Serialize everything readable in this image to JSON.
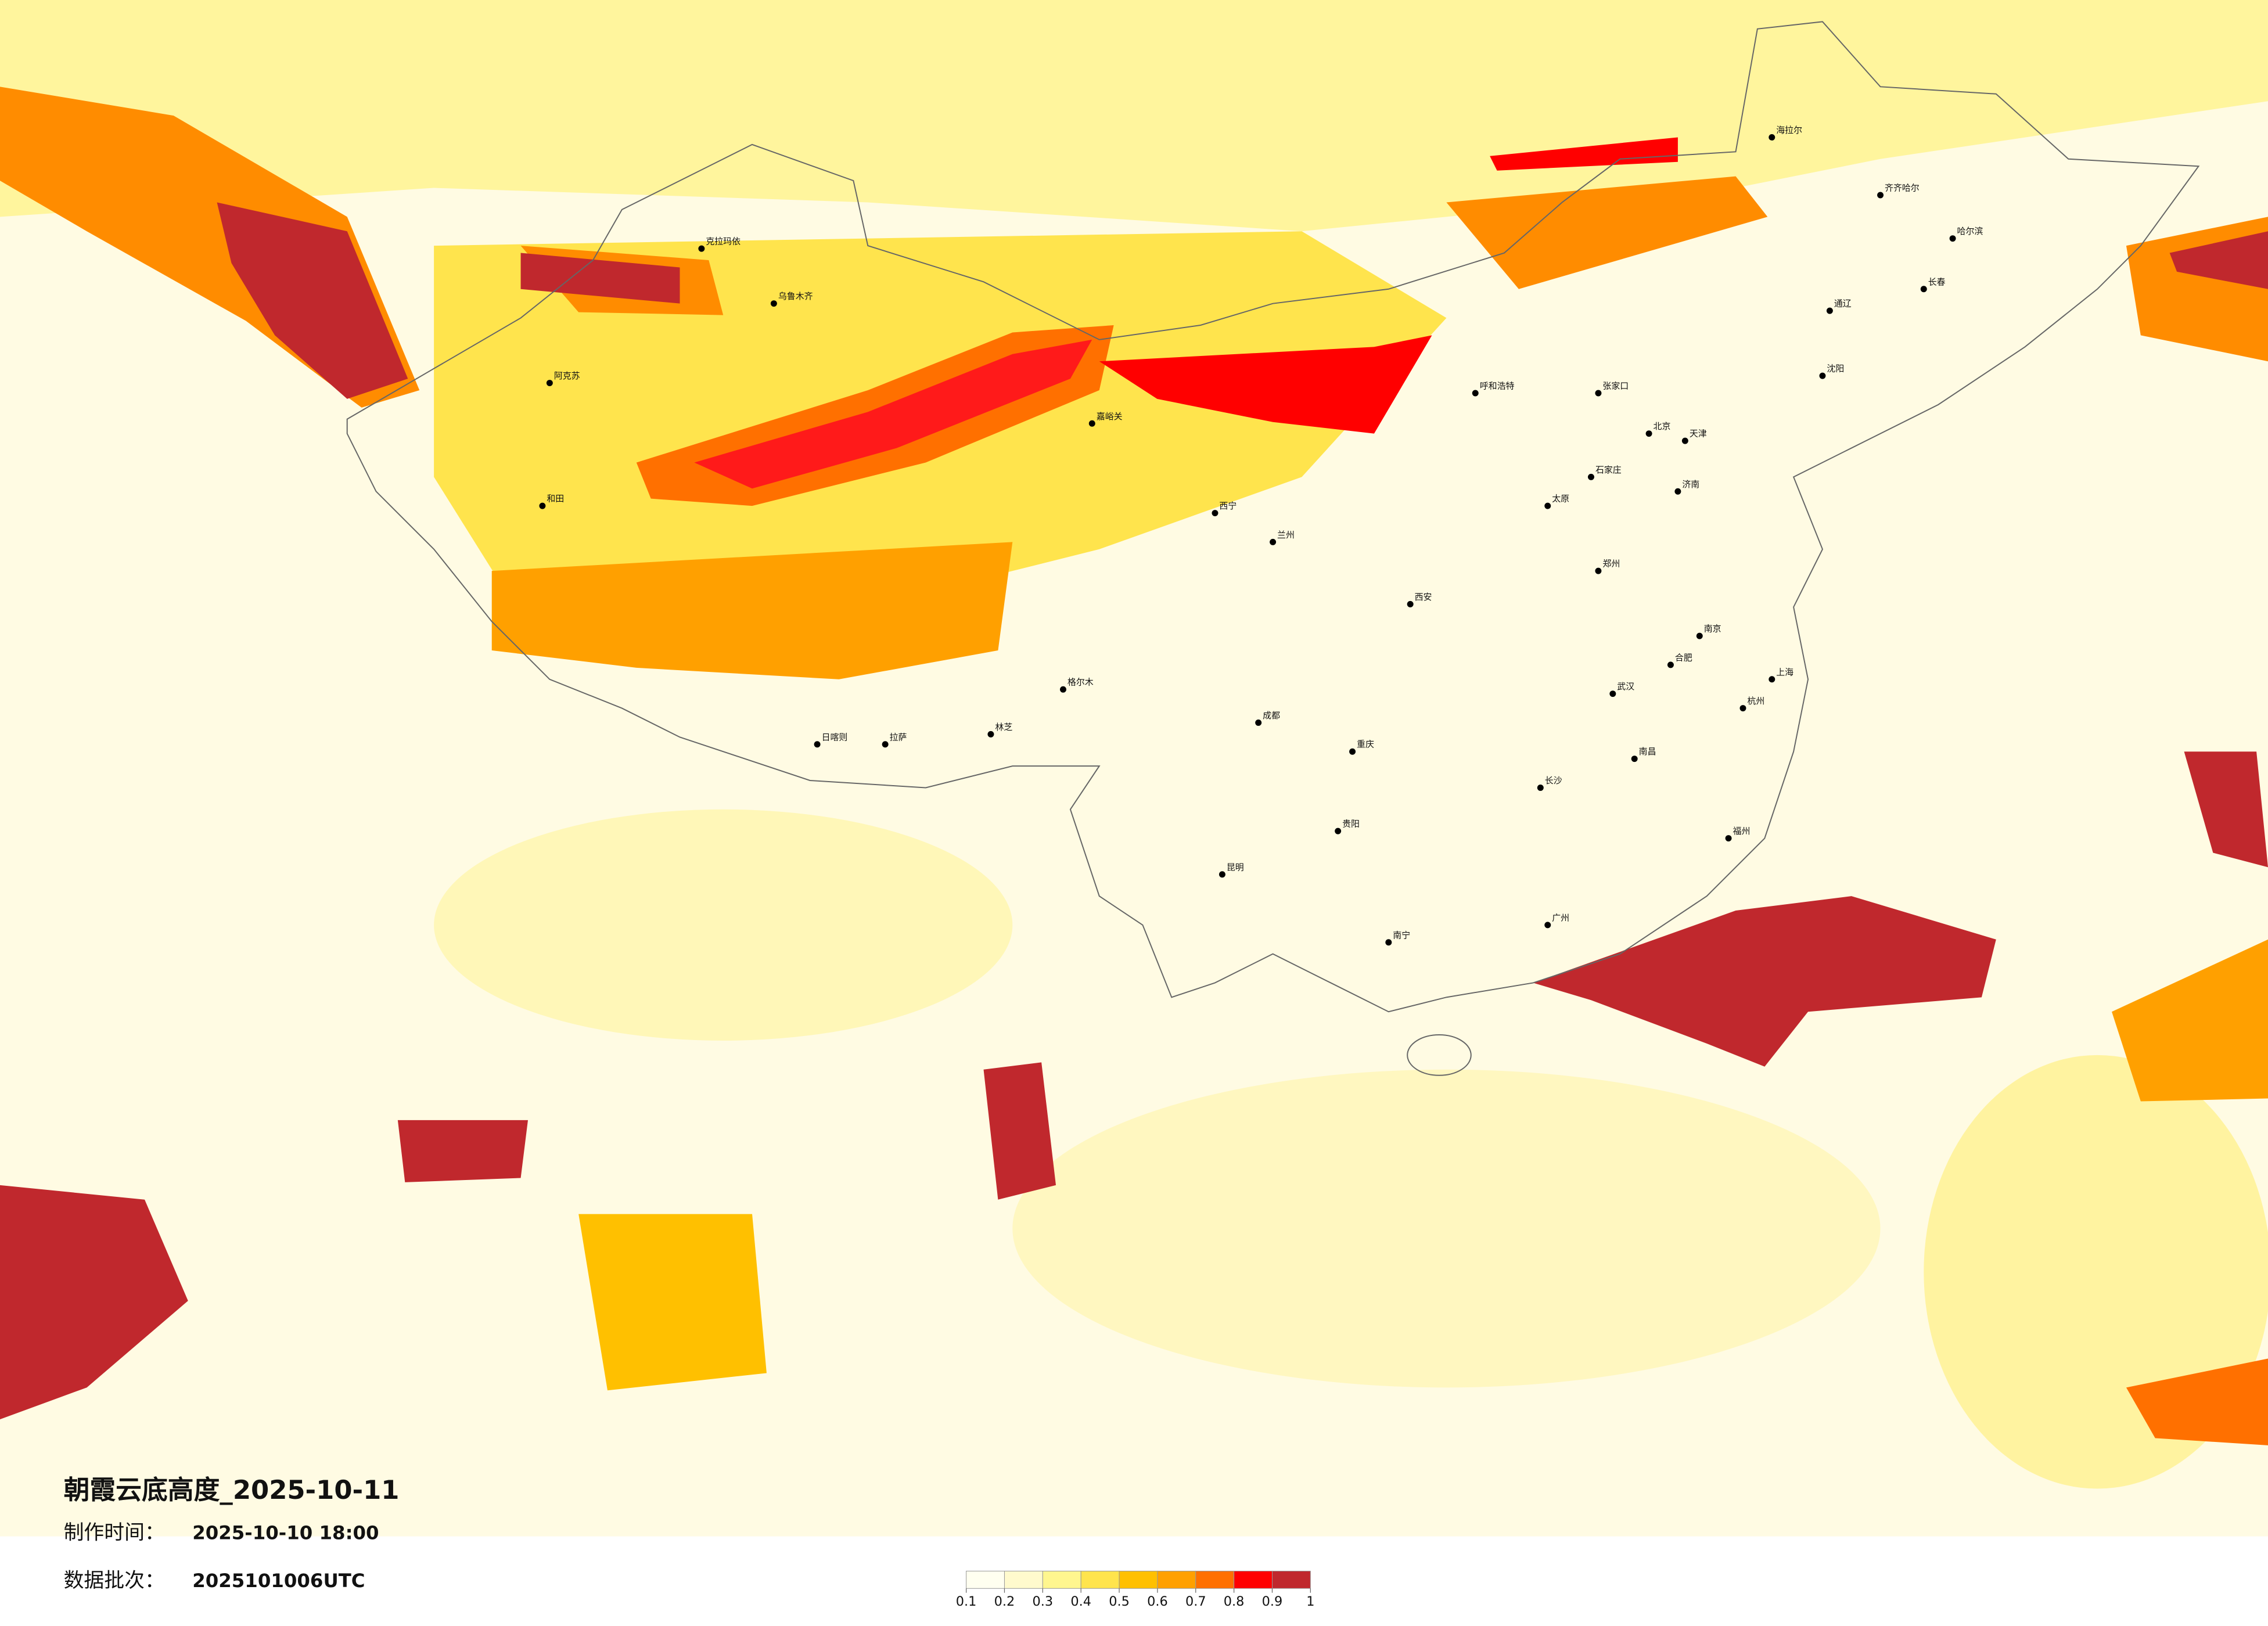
{
  "title": "朝霞云底高度_2025-10-11",
  "made_label": "制作时间：",
  "made_time": "2025-10-10 18:00",
  "batch_label": "数据批次：",
  "batch": "2025101006UTC",
  "legend": {
    "colors": [
      "#fffff0",
      "#fffacd",
      "#fff68f",
      "#ffe44d",
      "#ffc000",
      "#ffa000",
      "#ff7000",
      "#ff0000",
      "#c0282d"
    ],
    "ticks": [
      0.1,
      0.2,
      0.3,
      0.4,
      0.5,
      0.6,
      0.7,
      0.8,
      0.9,
      1
    ]
  },
  "cities": [
    "阿克苏",
    "和田",
    "克拉玛依",
    "乌鲁木齐",
    "嘉峪关",
    "格尔木",
    "拉萨",
    "日喀则",
    "林芝",
    "西宁",
    "兰州",
    "呼和浩特",
    "张家口",
    "石家庄",
    "太原",
    "郑州",
    "西安",
    "成都",
    "重庆",
    "贵阳",
    "昆明",
    "南宁",
    "广州",
    "长沙",
    "武汉",
    "南京",
    "上海",
    "杭州",
    "福州",
    "南昌",
    "合肥",
    "济南",
    "北京",
    "天津",
    "沈阳",
    "长春",
    "哈尔滨",
    "海拉尔",
    "齐齐哈尔",
    "通辽"
  ]
}
